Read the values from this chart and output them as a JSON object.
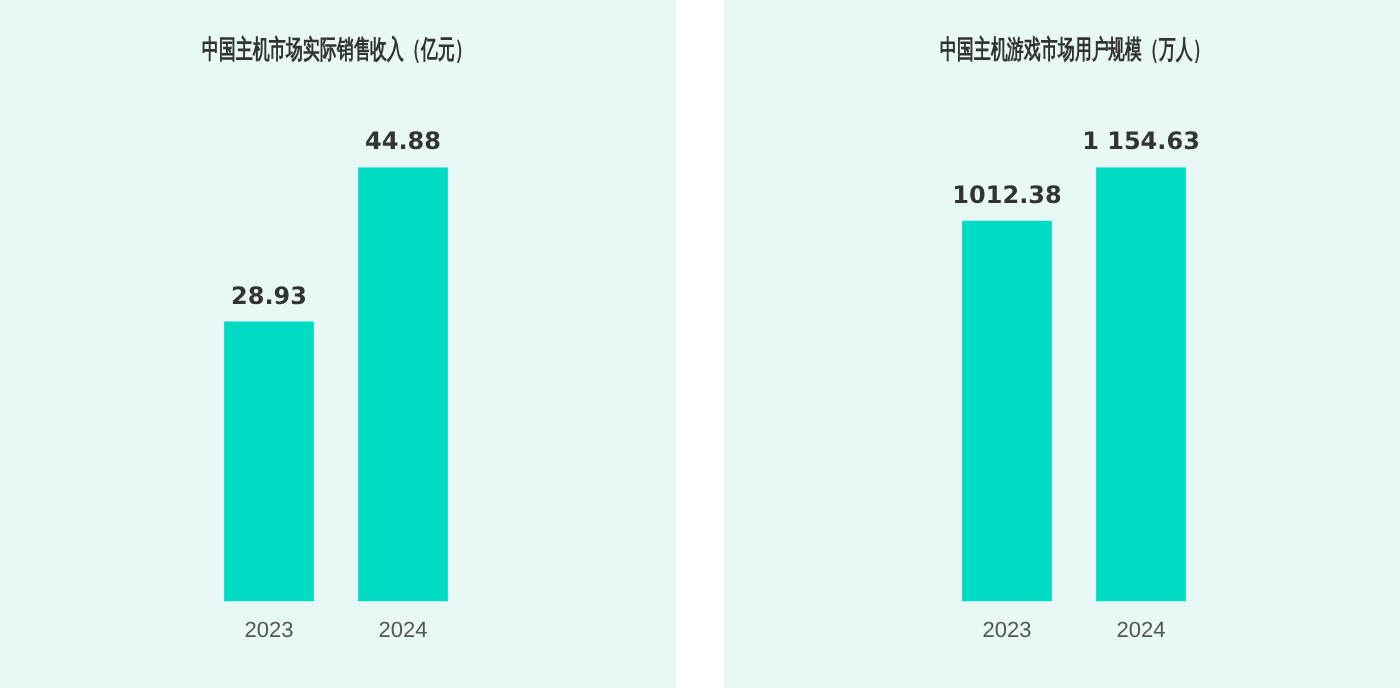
{
  "chart_data": [
    {
      "type": "bar",
      "title": "中国主机市场实际销售收入（亿元）",
      "categories": [
        "2023",
        "2024"
      ],
      "values": [
        28.93,
        44.88
      ],
      "color": "#00dbc3",
      "data_labels": true,
      "grid": false,
      "legend": false,
      "tick_labels": "x"
    },
    {
      "type": "bar",
      "title": "中国主机游戏市场用户规模（万人）",
      "categories": [
        "2023",
        "2024"
      ],
      "values": [
        1012.38,
        1154.63
      ],
      "value_labels": [
        "1012.38",
        "1 154.63"
      ],
      "color": "#00dbc3",
      "grid": false,
      "legend": false,
      "tick_labels": "x"
    }
  ]
}
